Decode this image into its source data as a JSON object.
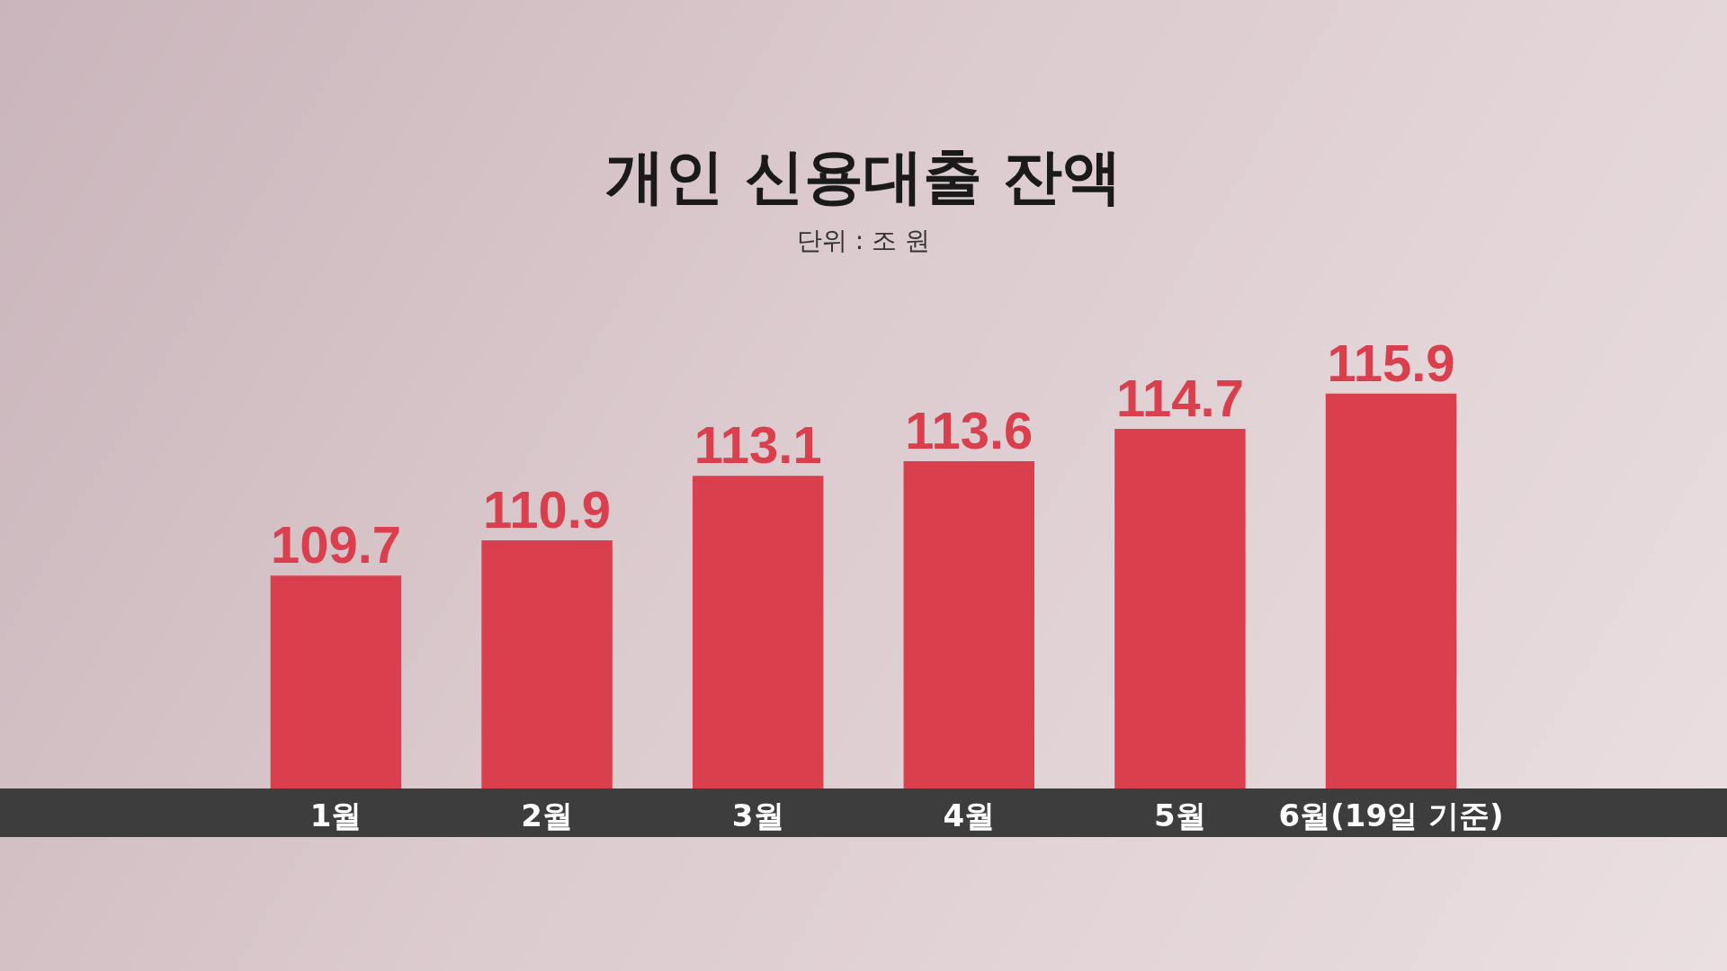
{
  "chart_data": {
    "type": "bar",
    "title": "개인 신용대출 잔액",
    "subtitle": "단위 : 조 원",
    "categories": [
      "1월",
      "2월",
      "3월",
      "4월",
      "5월",
      "6월(19일 기준)"
    ],
    "values": [
      109.7,
      110.9,
      113.1,
      113.6,
      114.7,
      115.9
    ],
    "color": "#d93f4c",
    "data_labels": true,
    "tick_labels": "x"
  }
}
